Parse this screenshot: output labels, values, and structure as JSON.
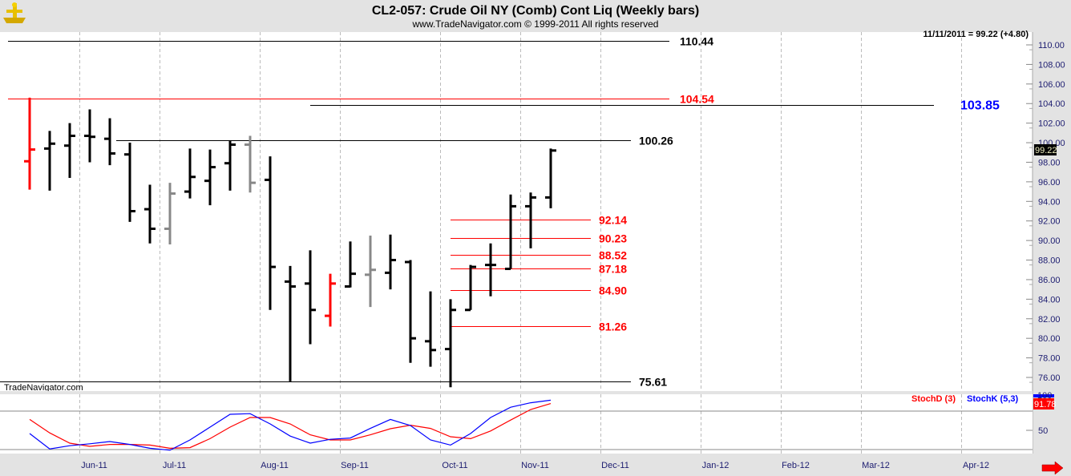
{
  "header": {
    "title": "CL2-057:  Crude Oil NY (Comb) Cont Liq  (Weekly bars)",
    "subtitle": "www.TradeNavigator.com © 1999-2011 All rights reserved",
    "logo": "trade-navigator-logo"
  },
  "watermark": "TradeNavigator.com",
  "colors": {
    "up": "#000000",
    "red": "#ff0000",
    "gray": "#888888",
    "blue": "#0000ff",
    "axis_text": "#1c1c70"
  },
  "chart_data": [
    {
      "type": "ohlc",
      "title": "CL2-057:  Crude Oil NY (Comb) Cont Liq  (Weekly bars)",
      "readout": "11/11/2011 = 99.22 (+4.80)",
      "last_price_label": "99.22",
      "ylim": [
        75,
        111.5
      ],
      "y_ticks": [
        "76.00",
        "78.00",
        "80.00",
        "82.00",
        "84.00",
        "86.00",
        "88.00",
        "90.00",
        "92.00",
        "94.00",
        "96.00",
        "98.00",
        "100.00",
        "102.00",
        "104.00",
        "106.00",
        "108.00",
        "110.00"
      ],
      "first_bar_date": "2011-05-13",
      "bar_interval_days": 7,
      "x_ticks": [
        {
          "label": "Jun-11",
          "date": "2011-06-03"
        },
        {
          "label": "Jul-11",
          "date": "2011-07-01"
        },
        {
          "label": "Aug-11",
          "date": "2011-08-05"
        },
        {
          "label": "Sep-11",
          "date": "2011-09-02"
        },
        {
          "label": "Oct-11",
          "date": "2011-10-07"
        },
        {
          "label": "Nov-11",
          "date": "2011-11-04"
        },
        {
          "label": "Dec-11",
          "date": "2011-12-02"
        },
        {
          "label": "Jan-12",
          "date": "2012-01-06"
        },
        {
          "label": "Feb-12",
          "date": "2012-02-03"
        },
        {
          "label": "Mar-12",
          "date": "2012-03-02"
        },
        {
          "label": "Apr-12",
          "date": "2012-04-06"
        }
      ],
      "bars": [
        {
          "o": 98.1,
          "h": 104.6,
          "l": 95.2,
          "c": 99.3,
          "color": "red"
        },
        {
          "o": 99.4,
          "h": 101.2,
          "l": 95.1,
          "c": 99.9
        },
        {
          "o": 99.7,
          "h": 102.0,
          "l": 96.4,
          "c": 100.7
        },
        {
          "o": 100.7,
          "h": 103.4,
          "l": 98.0,
          "c": 100.6
        },
        {
          "o": 100.4,
          "h": 102.5,
          "l": 97.7,
          "c": 98.9
        },
        {
          "o": 98.8,
          "h": 100.0,
          "l": 91.9,
          "c": 93.0
        },
        {
          "o": 93.2,
          "h": 95.7,
          "l": 89.7,
          "c": 91.2
        },
        {
          "o": 91.2,
          "h": 95.9,
          "l": 89.6,
          "c": 94.8,
          "color": "gray"
        },
        {
          "o": 95.0,
          "h": 99.4,
          "l": 94.3,
          "c": 96.5
        },
        {
          "o": 96.1,
          "h": 99.3,
          "l": 93.6,
          "c": 97.5
        },
        {
          "o": 97.9,
          "h": 100.2,
          "l": 95.1,
          "c": 99.8
        },
        {
          "o": 99.8,
          "h": 100.7,
          "l": 94.9,
          "c": 95.9,
          "color": "gray"
        },
        {
          "o": 96.2,
          "h": 98.6,
          "l": 82.9,
          "c": 87.3
        },
        {
          "o": 85.8,
          "h": 87.4,
          "l": 75.6,
          "c": 85.3
        },
        {
          "o": 85.6,
          "h": 89.0,
          "l": 79.4,
          "c": 82.9
        },
        {
          "o": 82.3,
          "h": 86.6,
          "l": 81.2,
          "c": 85.6,
          "color": "red"
        },
        {
          "o": 85.3,
          "h": 89.9,
          "l": 85.2,
          "c": 86.6
        },
        {
          "o": 86.5,
          "h": 90.5,
          "l": 83.2,
          "c": 87.0,
          "color": "gray"
        },
        {
          "o": 86.7,
          "h": 90.6,
          "l": 85.0,
          "c": 88.0
        },
        {
          "o": 87.8,
          "h": 88.0,
          "l": 77.5,
          "c": 80.0
        },
        {
          "o": 79.7,
          "h": 84.8,
          "l": 77.1,
          "c": 78.8
        },
        {
          "o": 78.9,
          "h": 84.0,
          "l": 75.0,
          "c": 82.9
        },
        {
          "o": 82.9,
          "h": 87.5,
          "l": 82.9,
          "c": 87.3
        },
        {
          "o": 87.5,
          "h": 89.7,
          "l": 84.3,
          "c": 87.5
        },
        {
          "o": 87.1,
          "h": 94.7,
          "l": 87.1,
          "c": 93.5
        },
        {
          "o": 93.5,
          "h": 94.9,
          "l": 89.2,
          "c": 94.4
        },
        {
          "o": 94.4,
          "h": 99.4,
          "l": 93.3,
          "c": 99.2
        }
      ],
      "levels": [
        {
          "value": 110.44,
          "label": "110.44",
          "color": "black"
        },
        {
          "value": 104.54,
          "label": "104.54",
          "color": "red"
        },
        {
          "value": 103.85,
          "label": "103.85",
          "color": "blue"
        },
        {
          "value": 100.26,
          "label": "100.26",
          "color": "black"
        },
        {
          "value": 92.14,
          "label": "92.14",
          "color": "red"
        },
        {
          "value": 90.23,
          "label": "90.23",
          "color": "red"
        },
        {
          "value": 88.52,
          "label": "88.52",
          "color": "red"
        },
        {
          "value": 87.18,
          "label": "87.18",
          "color": "red"
        },
        {
          "value": 84.9,
          "label": "84.90",
          "color": "red"
        },
        {
          "value": 81.26,
          "label": "81.26",
          "color": "red"
        },
        {
          "value": 75.61,
          "label": "75.61",
          "color": "black"
        }
      ]
    },
    {
      "type": "line",
      "ylim": [
        0,
        100
      ],
      "reference_lines": [
        20,
        80
      ],
      "y_ticks": [
        "50"
      ],
      "top_label": "100",
      "last_label": "91.78",
      "series": [
        {
          "name": "StochD (3)",
          "color": "#ff0000",
          "values": [
            67,
            46,
            30,
            25,
            28,
            28,
            27,
            22,
            23,
            37,
            55,
            70,
            70,
            60,
            43,
            35,
            35,
            43,
            52.5,
            58,
            53,
            40,
            37,
            49,
            66,
            82.5,
            91.78
          ]
        },
        {
          "name": "StochK (5,3)",
          "color": "#0000ff",
          "values": [
            45,
            21,
            26,
            29,
            32.5,
            28,
            22,
            19,
            35,
            55,
            75,
            76,
            60,
            41,
            30,
            36,
            38,
            53,
            67,
            57.5,
            35,
            27,
            45,
            70,
            86,
            93,
            97
          ]
        }
      ]
    }
  ]
}
